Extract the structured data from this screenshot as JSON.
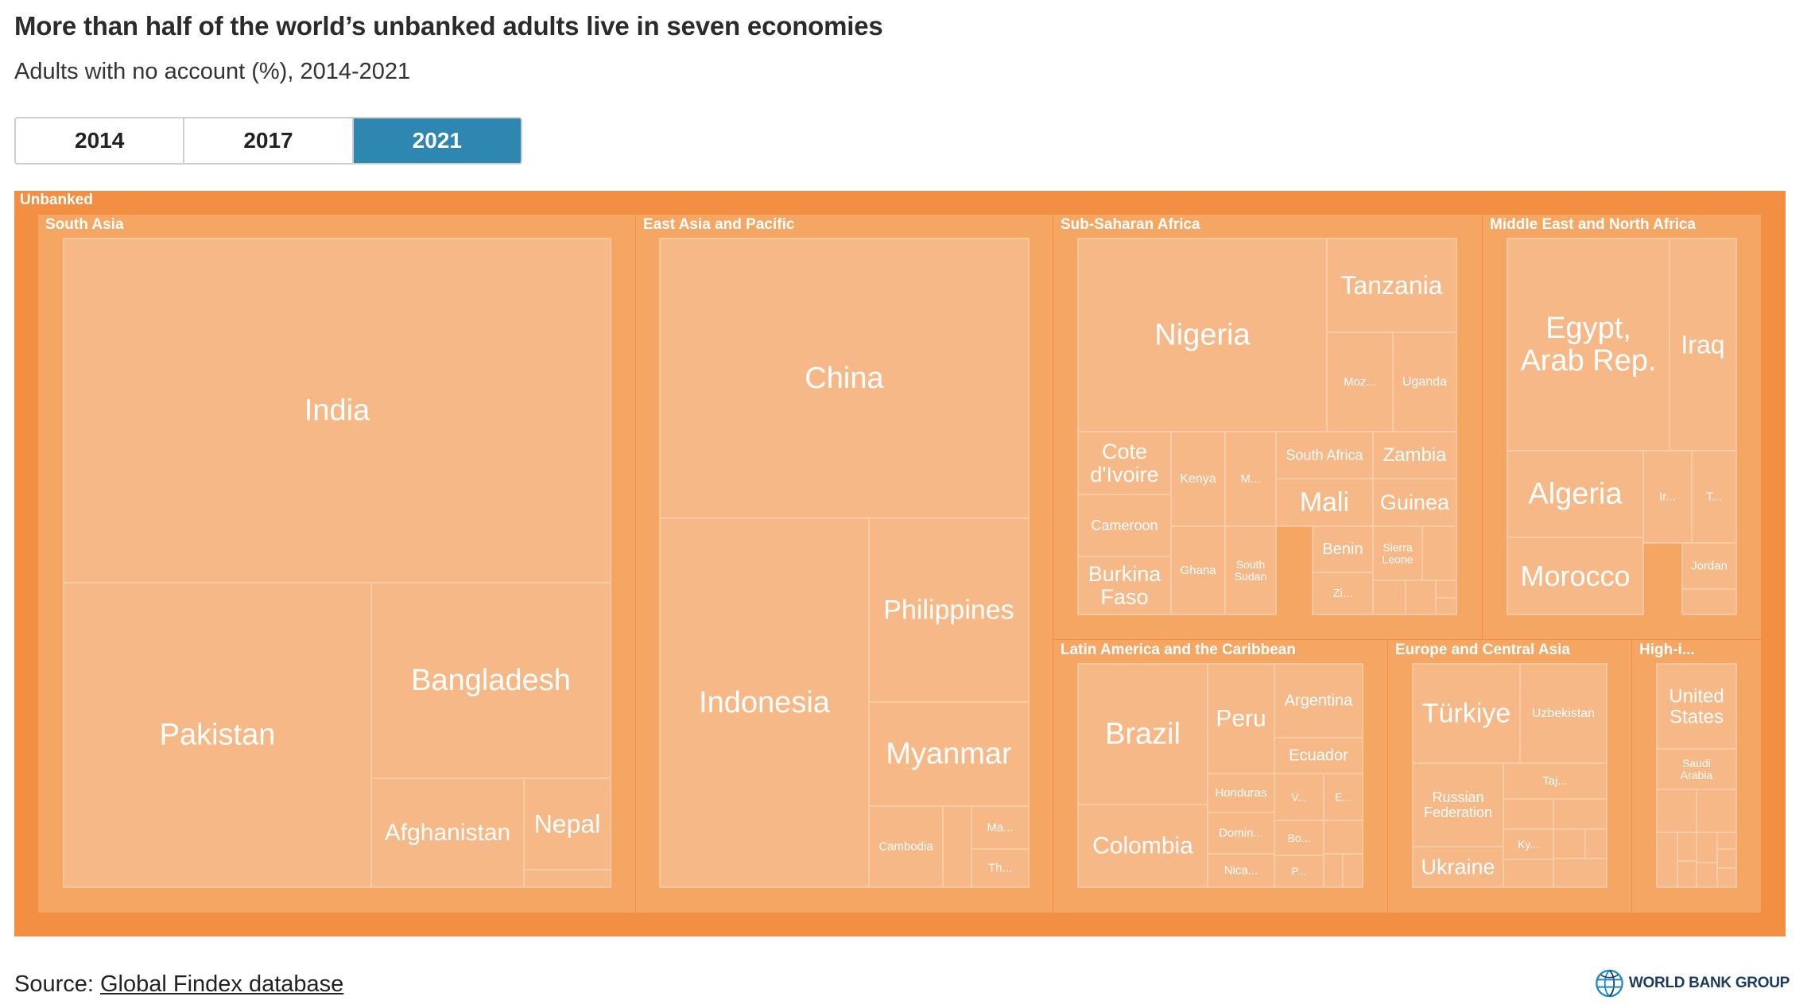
{
  "title": "More than half of the world’s unbanked adults live in seven economies",
  "subtitle": "Adults with no account (%), 2014-2021",
  "year_tabs": [
    {
      "label": "2014",
      "active": false
    },
    {
      "label": "2017",
      "active": false
    },
    {
      "label": "2021",
      "active": true
    }
  ],
  "source": {
    "prefix": "Source: ",
    "link_text": "Global Findex database"
  },
  "logo_text": "WORLD BANK GROUP",
  "colors": {
    "root": "#f28f42",
    "region": "#f5a662",
    "leaf": "#f7b887",
    "leaf_border": "#f9cfae",
    "label": "#ffffff",
    "tab_active": "#2e87b0"
  },
  "chart_data": {
    "type": "treemap",
    "title": "",
    "root_label": "Unbanked",
    "regions": [
      {
        "name": "South Asia",
        "label": "South Asia",
        "children": [
          {
            "name": "India",
            "label": "India"
          },
          {
            "name": "Pakistan",
            "label": "Pakistan"
          },
          {
            "name": "Bangladesh",
            "label": "Bangladesh"
          },
          {
            "name": "Afghanistan",
            "label": "Afghanistan"
          },
          {
            "name": "Nepal",
            "label": "Nepal"
          },
          {
            "name": "",
            "label": ""
          }
        ]
      },
      {
        "name": "East Asia and Pacific",
        "label": "East Asia and Pacific",
        "children": [
          {
            "name": "China",
            "label": "China"
          },
          {
            "name": "Indonesia",
            "label": "Indonesia"
          },
          {
            "name": "Philippines",
            "label": "Philippines"
          },
          {
            "name": "Myanmar",
            "label": "Myanmar"
          },
          {
            "name": "Cambodia",
            "label": "Cambodia"
          },
          {
            "name": "",
            "label": ""
          },
          {
            "name": "",
            "label": "Ma..."
          },
          {
            "name": "",
            "label": "Th..."
          }
        ]
      },
      {
        "name": "Sub-Saharan Africa",
        "label": "Sub-Saharan Africa",
        "children": [
          {
            "name": "Nigeria",
            "label": "Nigeria"
          },
          {
            "name": "Tanzania",
            "label": "Tanzania"
          },
          {
            "name": "",
            "label": "Moz..."
          },
          {
            "name": "Uganda",
            "label": "Uganda"
          },
          {
            "name": "Cote d'Ivoire",
            "label": "Cote\nd'Ivoire"
          },
          {
            "name": "Kenya",
            "label": "Kenya"
          },
          {
            "name": "",
            "label": "M..."
          },
          {
            "name": "South Africa",
            "label": "South Africa"
          },
          {
            "name": "Zambia",
            "label": "Zambia"
          },
          {
            "name": "Cameroon",
            "label": "Cameroon"
          },
          {
            "name": "Mali",
            "label": "Mali"
          },
          {
            "name": "Guinea",
            "label": "Guinea"
          },
          {
            "name": "Burkina Faso",
            "label": "Burkina\nFaso"
          },
          {
            "name": "Ghana",
            "label": "Ghana"
          },
          {
            "name": "South Sudan",
            "label": "South\nSudan"
          },
          {
            "name": "Benin",
            "label": "Benin"
          },
          {
            "name": "Sierra Leone",
            "label": "Sierra\nLeone"
          },
          {
            "name": "",
            "label": "Zi..."
          },
          {
            "name": "",
            "label": ""
          },
          {
            "name": "",
            "label": ""
          },
          {
            "name": "",
            "label": ""
          },
          {
            "name": "",
            "label": ""
          },
          {
            "name": "",
            "label": ""
          }
        ]
      },
      {
        "name": "Middle East and North Africa",
        "label": "Middle East and North Africa",
        "children": [
          {
            "name": "Egypt, Arab Rep.",
            "label": "Egypt,\nArab Rep."
          },
          {
            "name": "Iraq",
            "label": "Iraq"
          },
          {
            "name": "Algeria",
            "label": "Algeria"
          },
          {
            "name": "",
            "label": "Ir..."
          },
          {
            "name": "",
            "label": "T..."
          },
          {
            "name": "Morocco",
            "label": "Morocco"
          },
          {
            "name": "Jordan",
            "label": "Jordan"
          },
          {
            "name": "",
            "label": ""
          }
        ]
      },
      {
        "name": "Latin America and the Caribbean",
        "label": "Latin America and the Caribbean",
        "children": [
          {
            "name": "Brazil",
            "label": "Brazil"
          },
          {
            "name": "Peru",
            "label": "Peru"
          },
          {
            "name": "Argentina",
            "label": "Argentina"
          },
          {
            "name": "Ecuador",
            "label": "Ecuador"
          },
          {
            "name": "Colombia",
            "label": "Colombia"
          },
          {
            "name": "Honduras",
            "label": "Honduras"
          },
          {
            "name": "",
            "label": "V..."
          },
          {
            "name": "",
            "label": "E..."
          },
          {
            "name": "",
            "label": "Domin..."
          },
          {
            "name": "",
            "label": "Bo..."
          },
          {
            "name": "",
            "label": "Nica..."
          },
          {
            "name": "",
            "label": "P..."
          },
          {
            "name": "",
            "label": ""
          },
          {
            "name": "",
            "label": ""
          },
          {
            "name": "",
            "label": ""
          }
        ]
      },
      {
        "name": "Europe and Central Asia",
        "label": "Europe and Central Asia",
        "children": [
          {
            "name": "Türkiye",
            "label": "Türkiye"
          },
          {
            "name": "Uzbekistan",
            "label": "Uzbekistan"
          },
          {
            "name": "Russian Federation",
            "label": "Russian\nFederation"
          },
          {
            "name": "",
            "label": "Taj..."
          },
          {
            "name": "",
            "label": ""
          },
          {
            "name": "",
            "label": "Ky..."
          },
          {
            "name": "Ukraine",
            "label": "Ukraine"
          },
          {
            "name": "",
            "label": ""
          },
          {
            "name": "",
            "label": ""
          },
          {
            "name": "",
            "label": ""
          },
          {
            "name": "",
            "label": ""
          },
          {
            "name": "",
            "label": ""
          }
        ]
      },
      {
        "name": "High-income",
        "label": "High-i...",
        "children": [
          {
            "name": "United States",
            "label": "United\nStates"
          },
          {
            "name": "Saudi Arabia",
            "label": "Saudi\nArabia"
          },
          {
            "name": "",
            "label": ""
          },
          {
            "name": "",
            "label": ""
          },
          {
            "name": "",
            "label": ""
          },
          {
            "name": "",
            "label": ""
          },
          {
            "name": "",
            "label": ""
          },
          {
            "name": "",
            "label": ""
          },
          {
            "name": "",
            "label": ""
          },
          {
            "name": "",
            "label": ""
          },
          {
            "name": "",
            "label": ""
          },
          {
            "name": "",
            "label": ""
          }
        ]
      }
    ]
  }
}
